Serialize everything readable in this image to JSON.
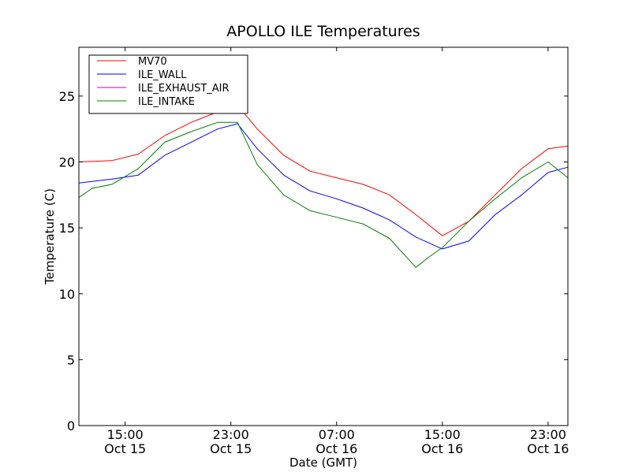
{
  "chart_data": {
    "type": "line",
    "title": "APOLLO ILE Temperatures",
    "xlabel": "Date (GMT)",
    "ylabel": "Temperature (C)",
    "x_unit": "hours",
    "xlim": [
      "Oct 15 11:30",
      "Oct 17 00:30"
    ],
    "ylim": [
      0,
      28.7
    ],
    "x_ticks": [
      {
        "time": "15:00",
        "date": "Oct 15",
        "line1": "15:00",
        "line2": "Oct 15"
      },
      {
        "time": "23:00",
        "date": "Oct 15",
        "line1": "23:00",
        "line2": "Oct 15"
      },
      {
        "time": "07:00",
        "date": "Oct 16",
        "line1": "07:00",
        "line2": "Oct 16"
      },
      {
        "time": "15:00",
        "date": "Oct 16",
        "line1": "15:00",
        "line2": "Oct 16"
      },
      {
        "time": "23:00",
        "date": "Oct 16",
        "line1": "23:00",
        "line2": "Oct 16"
      }
    ],
    "y_ticks": [
      "0",
      "5",
      "10",
      "15",
      "20",
      "25"
    ],
    "grid": false,
    "legend_position": "top-left",
    "series": [
      {
        "name": "MV70",
        "color": "#ff0000",
        "x": [
          "Oct 15 11:30",
          "Oct 15 14:00",
          "Oct 15 16:00",
          "Oct 15 18:00",
          "Oct 15 20:00",
          "Oct 15 22:00",
          "Oct 15 23:30",
          "Oct 16 01:00",
          "Oct 16 03:00",
          "Oct 16 05:00",
          "Oct 16 07:00",
          "Oct 16 09:00",
          "Oct 16 11:00",
          "Oct 16 13:00",
          "Oct 16 15:00",
          "Oct 16 17:00",
          "Oct 16 19:00",
          "Oct 16 21:00",
          "Oct 16 23:00",
          "Oct 17 00:30"
        ],
        "values": [
          20.0,
          20.1,
          20.6,
          22.0,
          23.0,
          23.8,
          24.3,
          22.5,
          20.5,
          19.3,
          18.8,
          18.3,
          17.5,
          16.0,
          14.4,
          15.5,
          17.5,
          19.5,
          21.0,
          21.2
        ]
      },
      {
        "name": "ILE_WALL",
        "color": "#0000ff",
        "x": [
          "Oct 15 11:30",
          "Oct 15 14:00",
          "Oct 15 16:00",
          "Oct 15 18:00",
          "Oct 15 20:00",
          "Oct 15 22:00",
          "Oct 15 23:30",
          "Oct 16 01:00",
          "Oct 16 03:00",
          "Oct 16 05:00",
          "Oct 16 07:00",
          "Oct 16 09:00",
          "Oct 16 11:00",
          "Oct 16 13:00",
          "Oct 16 15:00",
          "Oct 16 17:00",
          "Oct 16 19:00",
          "Oct 16 21:00",
          "Oct 16 23:00",
          "Oct 17 00:30"
        ],
        "values": [
          18.4,
          18.7,
          19.0,
          20.5,
          21.5,
          22.5,
          22.9,
          21.0,
          19.0,
          17.8,
          17.2,
          16.5,
          15.6,
          14.3,
          13.4,
          14.0,
          16.0,
          17.5,
          19.2,
          19.6
        ]
      },
      {
        "name": "ILE_EXHAUST_AIR",
        "color": "#bf00bf",
        "x": [],
        "values": []
      },
      {
        "name": "ILE_INTAKE",
        "color": "#008000",
        "x": [
          "Oct 15 11:30",
          "Oct 15 12:30",
          "Oct 15 14:00",
          "Oct 15 16:00",
          "Oct 15 18:00",
          "Oct 15 20:00",
          "Oct 15 22:00",
          "Oct 15 23:30",
          "Oct 16 01:00",
          "Oct 16 03:00",
          "Oct 16 05:00",
          "Oct 16 07:00",
          "Oct 16 09:00",
          "Oct 16 11:00",
          "Oct 16 13:00",
          "Oct 16 14:00",
          "Oct 16 15:00",
          "Oct 16 17:00",
          "Oct 16 19:00",
          "Oct 16 21:00",
          "Oct 16 23:00",
          "Oct 17 00:30"
        ],
        "values": [
          17.3,
          18.0,
          18.3,
          19.5,
          21.5,
          22.3,
          23.0,
          23.0,
          19.8,
          17.5,
          16.3,
          15.8,
          15.3,
          14.2,
          12.0,
          12.8,
          13.5,
          15.5,
          17.2,
          18.8,
          20.0,
          18.8
        ]
      }
    ]
  }
}
